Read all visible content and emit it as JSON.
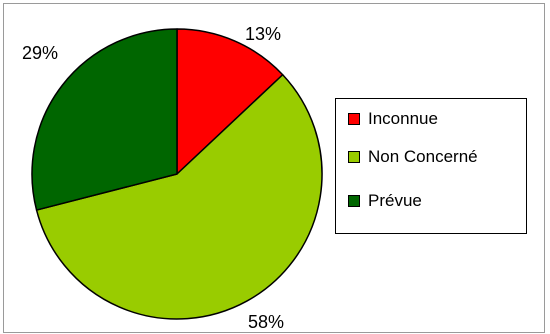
{
  "chart_data": {
    "type": "pie",
    "title": "",
    "slices": [
      {
        "label": "Inconnue",
        "value": 13,
        "display": "13%",
        "color": "#ff0000"
      },
      {
        "label": "Non Concerné",
        "value": 58,
        "display": "58%",
        "color": "#99cc00"
      },
      {
        "label": "Prévue",
        "value": 29,
        "display": "29%",
        "color": "#006600"
      }
    ],
    "start_angle_deg": 0,
    "direction": "clockwise",
    "legend_position": "right",
    "border_color": "#000000",
    "frame_color": "#9a9a9a"
  }
}
